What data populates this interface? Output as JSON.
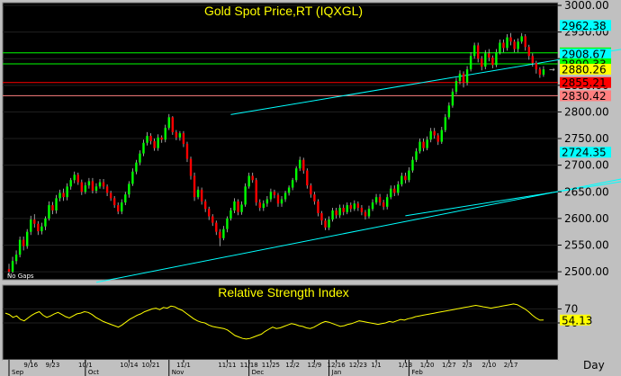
{
  "chart_data": [
    {
      "type": "candlestick",
      "title": "Gold Spot Price,RT  (IQXGL)",
      "note": "No Gaps",
      "ylim": [
        2490,
        3000
      ],
      "yticks": [
        "3000.00",
        "2950.00",
        "2900.00",
        "2850.00",
        "2800.00",
        "2750.00",
        "2700.00",
        "2650.00",
        "2600.00",
        "2550.00",
        "2500.00"
      ],
      "level_lines": [
        {
          "value": 2962.38,
          "label": "2962.38",
          "color": "#00ffff",
          "line": false
        },
        {
          "value": 2910.83,
          "label": "2910.83",
          "color": "#00ff00",
          "line": true
        },
        {
          "value": 2908.67,
          "label": "2908.67",
          "color": "#00ffff",
          "line": false
        },
        {
          "value": 2890.33,
          "label": "2890.33",
          "color": "#00ff00",
          "line": true
        },
        {
          "value": 2880.26,
          "label": "2880.26",
          "color": "#ffff00",
          "line": false
        },
        {
          "value": 2855.21,
          "label": "2855.21",
          "color": "#ff0000",
          "line": true
        },
        {
          "value": 2830.42,
          "label": "2830.42",
          "color": "#ff8080",
          "line": true
        },
        {
          "value": 2724.35,
          "label": "2724.35",
          "color": "#00ffff",
          "line": false
        }
      ],
      "trend_lines": [
        {
          "from": [
            61,
            2795
          ],
          "to": [
            210,
            2965
          ]
        },
        {
          "from": [
            180,
            2605
          ],
          "to": [
            212,
            2905
          ]
        },
        {
          "from": [
            24,
            2480
          ],
          "to": [
            210,
            2730
          ]
        },
        {
          "from": [
            109,
            2605
          ],
          "to": [
            197,
            2700
          ]
        }
      ],
      "colors": {
        "up": "#00ff00",
        "down": "#ff0000",
        "trend": "#00ffff"
      },
      "candles": [
        [
          0,
          2505,
          2500,
          2515,
          2495
        ],
        [
          1,
          2500,
          2520,
          2528,
          2497
        ],
        [
          2,
          2520,
          2532,
          2540,
          2514
        ],
        [
          3,
          2532,
          2560,
          2566,
          2527
        ],
        [
          4,
          2560,
          2548,
          2566,
          2540
        ],
        [
          5,
          2548,
          2575,
          2580,
          2543
        ],
        [
          6,
          2575,
          2598,
          2605,
          2569
        ],
        [
          7,
          2598,
          2590,
          2608,
          2583
        ],
        [
          8,
          2590,
          2576,
          2595,
          2569
        ],
        [
          9,
          2576,
          2585,
          2592,
          2570
        ],
        [
          10,
          2585,
          2600,
          2604,
          2578
        ],
        [
          11,
          2600,
          2625,
          2632,
          2596
        ],
        [
          12,
          2625,
          2615,
          2631,
          2608
        ],
        [
          13,
          2615,
          2638,
          2644,
          2609
        ],
        [
          14,
          2638,
          2648,
          2654,
          2632
        ],
        [
          15,
          2648,
          2640,
          2656,
          2633
        ],
        [
          16,
          2640,
          2660,
          2666,
          2634
        ],
        [
          17,
          2660,
          2672,
          2676,
          2654
        ],
        [
          18,
          2672,
          2682,
          2688,
          2666
        ],
        [
          19,
          2682,
          2668,
          2686,
          2663
        ],
        [
          20,
          2668,
          2650,
          2673,
          2644
        ],
        [
          21,
          2650,
          2662,
          2668,
          2646
        ],
        [
          22,
          2662,
          2670,
          2676,
          2656
        ],
        [
          23,
          2670,
          2652,
          2676,
          2647
        ],
        [
          24,
          2652,
          2660,
          2666,
          2647
        ],
        [
          25,
          2660,
          2668,
          2674,
          2656
        ],
        [
          26,
          2668,
          2660,
          2674,
          2655
        ],
        [
          27,
          2660,
          2648,
          2664,
          2642
        ],
        [
          28,
          2648,
          2638,
          2652,
          2633
        ],
        [
          29,
          2638,
          2625,
          2642,
          2620
        ],
        [
          30,
          2625,
          2613,
          2630,
          2608
        ],
        [
          31,
          2613,
          2630,
          2636,
          2608
        ],
        [
          32,
          2630,
          2645,
          2650,
          2625
        ],
        [
          33,
          2645,
          2665,
          2670,
          2639
        ],
        [
          34,
          2665,
          2688,
          2694,
          2661
        ],
        [
          35,
          2688,
          2705,
          2710,
          2683
        ],
        [
          36,
          2705,
          2722,
          2728,
          2700
        ],
        [
          37,
          2722,
          2742,
          2748,
          2717
        ],
        [
          38,
          2742,
          2755,
          2762,
          2737
        ],
        [
          39,
          2755,
          2745,
          2760,
          2739
        ],
        [
          40,
          2745,
          2732,
          2750,
          2727
        ],
        [
          41,
          2732,
          2752,
          2758,
          2727
        ],
        [
          42,
          2752,
          2748,
          2756,
          2742
        ],
        [
          43,
          2748,
          2770,
          2776,
          2743
        ],
        [
          44,
          2770,
          2790,
          2796,
          2766
        ],
        [
          45,
          2790,
          2762,
          2792,
          2757
        ],
        [
          46,
          2762,
          2752,
          2766,
          2747
        ],
        [
          47,
          2752,
          2760,
          2764,
          2746
        ],
        [
          48,
          2760,
          2740,
          2764,
          2734
        ],
        [
          49,
          2740,
          2712,
          2744,
          2706
        ],
        [
          50,
          2712,
          2680,
          2716,
          2673
        ],
        [
          51,
          2680,
          2640,
          2686,
          2633
        ],
        [
          52,
          2640,
          2654,
          2660,
          2636
        ],
        [
          53,
          2654,
          2632,
          2658,
          2626
        ],
        [
          54,
          2632,
          2618,
          2636,
          2612
        ],
        [
          55,
          2618,
          2604,
          2622,
          2597
        ],
        [
          56,
          2604,
          2592,
          2608,
          2586
        ],
        [
          57,
          2592,
          2575,
          2596,
          2569
        ],
        [
          58,
          2575,
          2563,
          2580,
          2548
        ],
        [
          59,
          2563,
          2580,
          2586,
          2559
        ],
        [
          60,
          2580,
          2600,
          2604,
          2574
        ],
        [
          61,
          2600,
          2615,
          2620,
          2596
        ],
        [
          62,
          2615,
          2632,
          2638,
          2610
        ],
        [
          63,
          2632,
          2612,
          2636,
          2606
        ],
        [
          64,
          2612,
          2626,
          2632,
          2607
        ],
        [
          65,
          2626,
          2660,
          2666,
          2622
        ],
        [
          66,
          2660,
          2680,
          2686,
          2656
        ],
        [
          67,
          2680,
          2672,
          2686,
          2667
        ],
        [
          68,
          2672,
          2630,
          2676,
          2624
        ],
        [
          69,
          2630,
          2620,
          2636,
          2614
        ],
        [
          70,
          2620,
          2628,
          2634,
          2614
        ],
        [
          71,
          2628,
          2636,
          2642,
          2622
        ],
        [
          72,
          2636,
          2650,
          2656,
          2631
        ],
        [
          73,
          2650,
          2644,
          2654,
          2638
        ],
        [
          74,
          2644,
          2628,
          2648,
          2622
        ],
        [
          75,
          2628,
          2636,
          2642,
          2622
        ],
        [
          76,
          2636,
          2648,
          2652,
          2631
        ],
        [
          77,
          2648,
          2658,
          2662,
          2643
        ],
        [
          78,
          2658,
          2672,
          2676,
          2653
        ],
        [
          79,
          2672,
          2694,
          2698,
          2668
        ],
        [
          80,
          2694,
          2710,
          2716,
          2689
        ],
        [
          81,
          2710,
          2690,
          2714,
          2684
        ],
        [
          82,
          2690,
          2662,
          2694,
          2656
        ],
        [
          83,
          2662,
          2645,
          2666,
          2639
        ],
        [
          84,
          2645,
          2632,
          2650,
          2626
        ],
        [
          85,
          2632,
          2610,
          2636,
          2604
        ],
        [
          86,
          2610,
          2596,
          2614,
          2588
        ],
        [
          87,
          2596,
          2583,
          2600,
          2578
        ],
        [
          88,
          2583,
          2598,
          2604,
          2578
        ],
        [
          89,
          2598,
          2615,
          2620,
          2594
        ],
        [
          90,
          2615,
          2606,
          2620,
          2600
        ],
        [
          91,
          2606,
          2620,
          2626,
          2601
        ],
        [
          92,
          2620,
          2612,
          2626,
          2606
        ],
        [
          93,
          2612,
          2625,
          2630,
          2608
        ],
        [
          94,
          2625,
          2618,
          2630,
          2612
        ],
        [
          95,
          2618,
          2628,
          2634,
          2614
        ],
        [
          96,
          2628,
          2620,
          2632,
          2614
        ],
        [
          97,
          2620,
          2612,
          2625,
          2606
        ],
        [
          98,
          2612,
          2604,
          2616,
          2598
        ],
        [
          99,
          2604,
          2618,
          2624,
          2600
        ],
        [
          100,
          2618,
          2630,
          2636,
          2614
        ],
        [
          101,
          2630,
          2640,
          2646,
          2626
        ],
        [
          102,
          2640,
          2630,
          2646,
          2624
        ],
        [
          103,
          2630,
          2622,
          2635,
          2616
        ],
        [
          104,
          2622,
          2640,
          2646,
          2617
        ],
        [
          105,
          2640,
          2656,
          2662,
          2636
        ],
        [
          106,
          2656,
          2648,
          2662,
          2642
        ],
        [
          107,
          2648,
          2664,
          2670,
          2643
        ],
        [
          108,
          2664,
          2680,
          2686,
          2660
        ],
        [
          109,
          2680,
          2672,
          2686,
          2666
        ],
        [
          110,
          2672,
          2690,
          2696,
          2668
        ],
        [
          111,
          2690,
          2710,
          2716,
          2686
        ],
        [
          112,
          2710,
          2726,
          2732,
          2706
        ],
        [
          113,
          2726,
          2744,
          2750,
          2722
        ],
        [
          114,
          2744,
          2732,
          2750,
          2726
        ],
        [
          115,
          2732,
          2748,
          2754,
          2728
        ],
        [
          116,
          2748,
          2764,
          2770,
          2743
        ],
        [
          117,
          2764,
          2756,
          2770,
          2750
        ],
        [
          118,
          2756,
          2744,
          2760,
          2738
        ],
        [
          119,
          2744,
          2766,
          2772,
          2740
        ],
        [
          120,
          2766,
          2790,
          2796,
          2762
        ],
        [
          121,
          2790,
          2812,
          2818,
          2786
        ],
        [
          122,
          2812,
          2838,
          2844,
          2808
        ],
        [
          123,
          2838,
          2858,
          2864,
          2833
        ],
        [
          124,
          2858,
          2872,
          2878,
          2852
        ],
        [
          125,
          2872,
          2855,
          2876,
          2846
        ],
        [
          126,
          2855,
          2880,
          2886,
          2850
        ],
        [
          127,
          2880,
          2905,
          2912,
          2876
        ],
        [
          128,
          2905,
          2925,
          2930,
          2900
        ],
        [
          129,
          2925,
          2900,
          2930,
          2893
        ],
        [
          130,
          2900,
          2885,
          2905,
          2878
        ],
        [
          131,
          2885,
          2910,
          2916,
          2880
        ],
        [
          132,
          2910,
          2902,
          2918,
          2895
        ],
        [
          133,
          2902,
          2888,
          2906,
          2882
        ],
        [
          134,
          2888,
          2912,
          2918,
          2884
        ],
        [
          135,
          2912,
          2930,
          2936,
          2908
        ],
        [
          136,
          2930,
          2920,
          2936,
          2912
        ],
        [
          137,
          2920,
          2940,
          2946,
          2915
        ],
        [
          138,
          2940,
          2932,
          2948,
          2925
        ],
        [
          139,
          2932,
          2918,
          2936,
          2912
        ],
        [
          140,
          2918,
          2932,
          2938,
          2912
        ],
        [
          141,
          2932,
          2942,
          2948,
          2928
        ],
        [
          142,
          2942,
          2922,
          2946,
          2915
        ],
        [
          143,
          2922,
          2905,
          2926,
          2898
        ],
        [
          144,
          2905,
          2892,
          2910,
          2885
        ],
        [
          145,
          2892,
          2880,
          2896,
          2872
        ],
        [
          146,
          2880,
          2870,
          2884,
          2864
        ],
        [
          147,
          2870,
          2880,
          2886,
          2866
        ]
      ],
      "last_marker": {
        "index": 149,
        "value": 2880
      }
    },
    {
      "type": "line",
      "title": "Relative Strength Index",
      "yticks": [
        "70",
        "50"
      ],
      "last_value": "54.13",
      "color": "#ffff00",
      "values": [
        64,
        62,
        58,
        60,
        55,
        53,
        57,
        61,
        64,
        66,
        61,
        58,
        60,
        63,
        65,
        62,
        59,
        57,
        60,
        63,
        64,
        66,
        65,
        62,
        58,
        55,
        52,
        50,
        48,
        46,
        44,
        47,
        51,
        55,
        58,
        61,
        63,
        66,
        68,
        70,
        71,
        69,
        72,
        71,
        74,
        73,
        70,
        68,
        64,
        60,
        56,
        53,
        51,
        50,
        47,
        45,
        44,
        43,
        42,
        40,
        36,
        32,
        30,
        28,
        27,
        28,
        30,
        32,
        34,
        38,
        41,
        44,
        42,
        43,
        45,
        47,
        49,
        48,
        46,
        45,
        43,
        42,
        44,
        47,
        50,
        52,
        51,
        49,
        47,
        45,
        46,
        48,
        49,
        51,
        53,
        52,
        51,
        50,
        49,
        48,
        49,
        50,
        52,
        51,
        53,
        55,
        54,
        56,
        57,
        59,
        60,
        61,
        62,
        63,
        64,
        65,
        66,
        67,
        68,
        69,
        70,
        71,
        72,
        73,
        74,
        75,
        74,
        73,
        72,
        71,
        72,
        73,
        74,
        75,
        76,
        77,
        76,
        73,
        70,
        66,
        61,
        57,
        54,
        54.13
      ],
      "xlim": [
        0,
        149
      ]
    }
  ],
  "x_axis": {
    "months": [
      "Sep",
      "Oct",
      "Nov",
      "Dec",
      "Jan",
      "Feb"
    ],
    "month_index": [
      0,
      21,
      44,
      66,
      88,
      110
    ],
    "dates": [
      "9/16",
      "9/23",
      "10/1",
      "10/14",
      "10/21",
      "11/1",
      "11/11",
      "11/18",
      "11/25",
      "12/2",
      "12/9",
      "12/16",
      "12/23",
      "1/1",
      "1/13",
      "1/20",
      "1/27",
      "2/3",
      "2/10",
      "2/17"
    ],
    "date_index": [
      6,
      12,
      21,
      33,
      39,
      48,
      60,
      66,
      72,
      78,
      84,
      90,
      96,
      101,
      109,
      115,
      121,
      126,
      132,
      138
    ],
    "interval": "Day"
  }
}
